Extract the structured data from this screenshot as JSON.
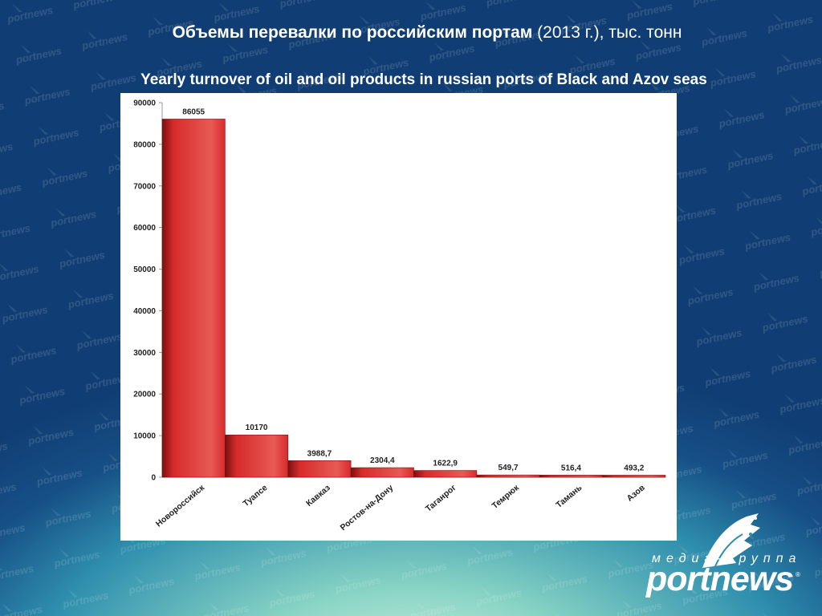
{
  "header": {
    "title_ru_bold": "Объемы перевалки по российским портам",
    "title_ru_rest": " (2013 г.), тыс. тонн",
    "title_en": "Yearly turnover of oil and oil products in russian ports of Black and Azov seas"
  },
  "logo": {
    "tagline": "медиа-группа",
    "wordmark": "portnews",
    "registered": "®"
  },
  "watermark": {
    "text": "portnews"
  },
  "colors": {
    "bar_fill": "#d62b2b",
    "bar_dark": "#7a1010",
    "bar_light": "#e85a55",
    "plot_bg": "#ffffff",
    "axis": "#999999"
  },
  "chart_data": {
    "type": "bar",
    "categories": [
      "Новороссийск",
      "Туапсе",
      "Кавказ",
      "Ростов-на-Дону",
      "Таганрог",
      "Темрюк",
      "Тамань",
      "Азов"
    ],
    "values": [
      86055,
      10170,
      3988.7,
      2304.4,
      1622.9,
      549.7,
      516.4,
      493.2
    ],
    "value_labels": [
      "86055",
      "10170",
      "3988,7",
      "2304,4",
      "1622,9",
      "549,7",
      "516,4",
      "493,2"
    ],
    "ylim": [
      0,
      90000
    ],
    "yticks": [
      0,
      10000,
      20000,
      30000,
      40000,
      50000,
      60000,
      70000,
      80000,
      90000
    ],
    "ytick_labels": [
      "0",
      "10000",
      "20000",
      "30000",
      "40000",
      "50000",
      "60000",
      "70000",
      "80000",
      "90000"
    ],
    "grid": false,
    "legend": "none",
    "title": "",
    "xlabel": "",
    "ylabel": ""
  }
}
